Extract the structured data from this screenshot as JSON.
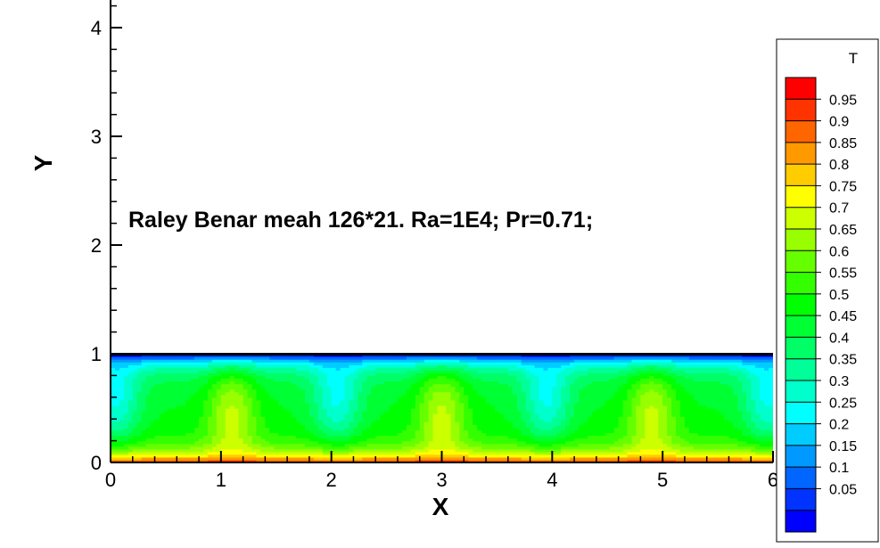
{
  "chart_data": {
    "type": "heatmap",
    "title": "",
    "annotation": "Raley Benar meah 126*21. Ra=1E4; Pr=0.71;",
    "xlabel": "X",
    "ylabel": "Y",
    "xlim": [
      0,
      6
    ],
    "ylim": [
      0,
      4.2
    ],
    "x_ticks": [
      0,
      1,
      2,
      3,
      4,
      5,
      6
    ],
    "y_ticks": [
      0,
      1,
      2,
      3,
      4
    ],
    "x_tick_labels": [
      "0",
      "1",
      "2",
      "3",
      "4",
      "5",
      "6"
    ],
    "y_tick_labels": [
      "0",
      "1",
      "2",
      "3",
      "4"
    ],
    "domain": {
      "x": [
        0,
        6
      ],
      "y": [
        0,
        1
      ]
    },
    "mesh": "126*21",
    "Ra": "1E4",
    "Pr": "0.71",
    "plume_x_positions": [
      1.1,
      3.0,
      4.9
    ],
    "downflow_x_positions": [
      0.05,
      2.05,
      3.95,
      5.95
    ],
    "legend": {
      "variable": "T",
      "levels": [
        "0.95",
        "0.9",
        "0.85",
        "0.8",
        "0.75",
        "0.7",
        "0.65",
        "0.6",
        "0.55",
        "0.5",
        "0.45",
        "0.4",
        "0.35",
        "0.3",
        "0.25",
        "0.2",
        "0.15",
        "0.1",
        "0.05"
      ],
      "colors": [
        "#ff0000",
        "#ff3300",
        "#ff6600",
        "#ff9900",
        "#ffcc00",
        "#ffff00",
        "#ccff00",
        "#99ff00",
        "#66ff00",
        "#33ff00",
        "#00ff00",
        "#00ff33",
        "#00ff66",
        "#00ff99",
        "#00ffcc",
        "#00ffff",
        "#00ccff",
        "#0099ff",
        "#0066ff",
        "#0033ff",
        "#0000ff"
      ]
    }
  }
}
